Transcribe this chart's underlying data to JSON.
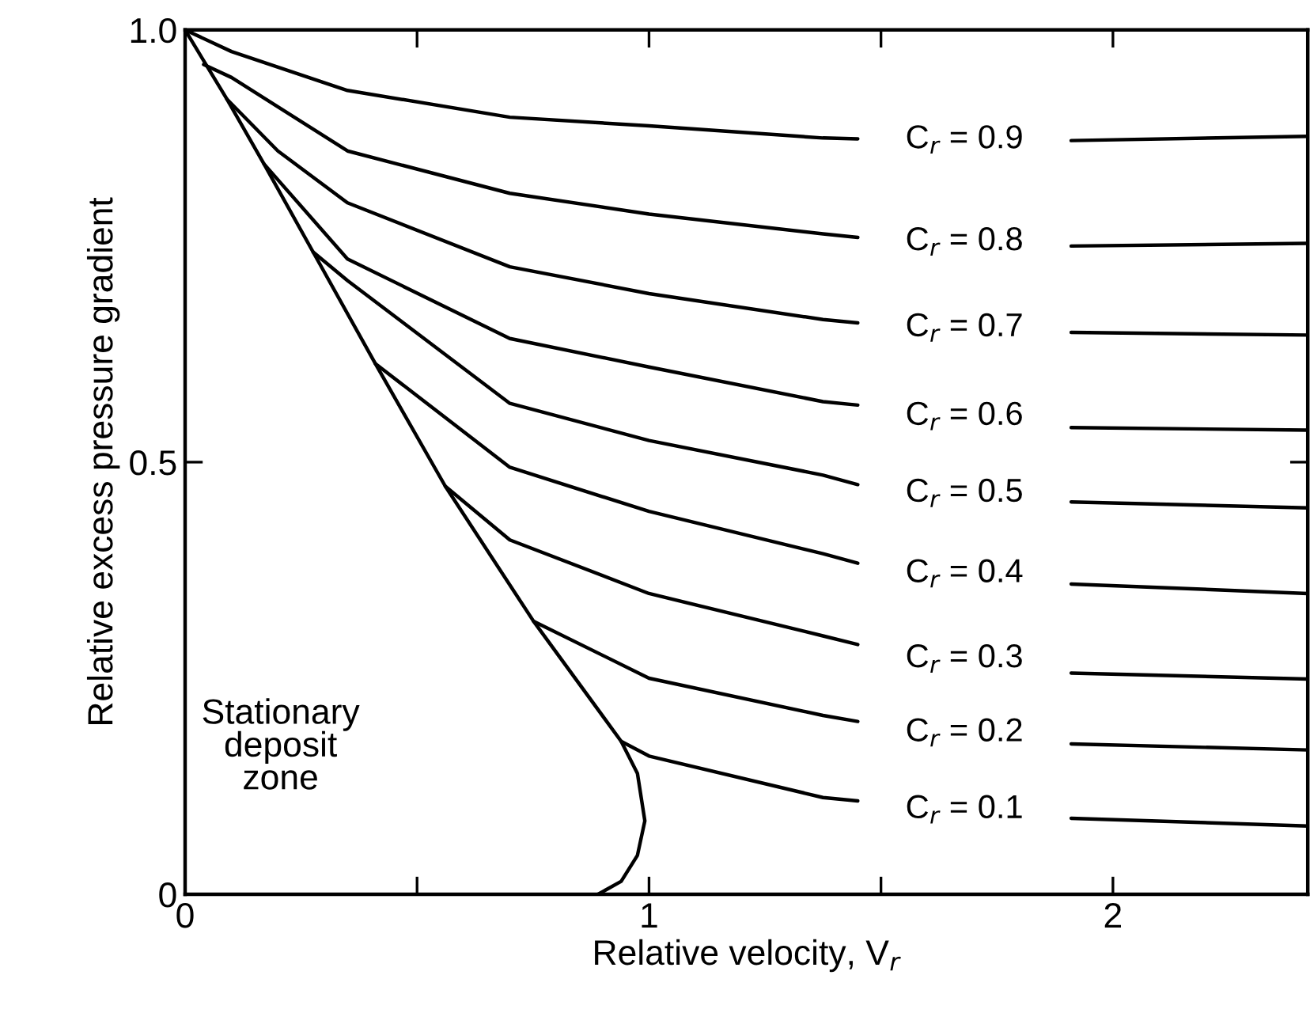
{
  "chart_data": {
    "type": "line",
    "xlabel": "Relative velocity, V$_{r}$",
    "ylabel": "Relative excess pressure gradient",
    "xlim": [
      0,
      2.42
    ],
    "ylim": [
      0,
      1.0
    ],
    "xticks": [
      0,
      {
        "value": 0.5,
        "label": null
      },
      1,
      {
        "value": 1.5,
        "label": null
      },
      2
    ],
    "yticks": [
      0,
      0.5,
      {
        "value": 1.0,
        "label": "1.0"
      }
    ],
    "grid": false,
    "legend": false,
    "series": [
      {
        "name": "C$_{r}$ = 0.9",
        "color": "#000000",
        "x": [
          0,
          0.1,
          0.35,
          0.7,
          1.0,
          1.375,
          1.45,
          1.68,
          1.91,
          2.42
        ],
        "values": [
          1.0,
          0.975,
          0.93,
          0.899,
          0.889,
          0.875,
          0.874,
          null,
          0.872,
          0.877
        ]
      },
      {
        "name": "C$_{r}$ = 0.8",
        "color": "#000000",
        "x": [
          0.04,
          0.1,
          0.35,
          0.7,
          1.0,
          1.375,
          1.45,
          1.68,
          1.91,
          2.42
        ],
        "values": [
          0.96,
          0.945,
          0.86,
          0.811,
          0.787,
          0.764,
          0.76,
          null,
          0.75,
          0.753
        ]
      },
      {
        "name": "C$_{r}$ = 0.7",
        "color": "#000000",
        "x": [
          0.09,
          0.2,
          0.35,
          0.7,
          1.0,
          1.375,
          1.45,
          1.68,
          1.91,
          2.42
        ],
        "values": [
          0.92,
          0.86,
          0.8,
          0.726,
          0.695,
          0.665,
          0.661,
          null,
          0.65,
          0.647
        ]
      },
      {
        "name": "C$_{r}$ = 0.6",
        "color": "#000000",
        "x": [
          0.17,
          0.35,
          0.7,
          1.0,
          1.375,
          1.45,
          1.68,
          1.91,
          2.42
        ],
        "values": [
          0.845,
          0.735,
          0.643,
          0.61,
          0.57,
          0.566,
          null,
          0.54,
          0.537
        ]
      },
      {
        "name": "C$_{r}$ = 0.5",
        "color": "#000000",
        "x": [
          0.276,
          0.35,
          0.7,
          1.0,
          1.375,
          1.45,
          1.68,
          1.91,
          2.42
        ],
        "values": [
          0.743,
          0.71,
          0.568,
          0.525,
          0.485,
          0.474,
          null,
          0.454,
          0.447
        ]
      },
      {
        "name": "C$_{r}$ = 0.4",
        "color": "#000000",
        "x": [
          0.41,
          0.7,
          1.0,
          1.375,
          1.45,
          1.68,
          1.91,
          2.42
        ],
        "values": [
          0.614,
          0.494,
          0.443,
          0.394,
          0.383,
          null,
          0.359,
          0.348
        ]
      },
      {
        "name": "C$_{r}$ = 0.3",
        "color": "#000000",
        "x": [
          0.561,
          0.7,
          1.0,
          1.375,
          1.45,
          1.68,
          1.91,
          2.42
        ],
        "values": [
          0.472,
          0.41,
          0.348,
          0.299,
          0.289,
          null,
          0.256,
          0.249
        ]
      },
      {
        "name": "C$_{r}$ = 0.2",
        "color": "#000000",
        "x": [
          0.751,
          1.0,
          1.375,
          1.45,
          1.68,
          1.91,
          2.42
        ],
        "values": [
          0.316,
          0.25,
          0.207,
          0.2,
          null,
          0.174,
          0.167
        ]
      },
      {
        "name": "C$_{r}$ = 0.1",
        "color": "#000000",
        "x": [
          0.94,
          1.0,
          1.375,
          1.45,
          1.68,
          1.91,
          2.42
        ],
        "values": [
          0.177,
          0.16,
          0.112,
          0.108,
          null,
          0.088,
          0.079
        ]
      },
      {
        "color": "#000000",
        "x": [
          0,
          0.09,
          0.17,
          0.276,
          0.41,
          0.561,
          0.751,
          0.94,
          0.975,
          0.991,
          0.975,
          0.94,
          0.89
        ],
        "values": [
          1.0,
          0.92,
          0.845,
          0.743,
          0.614,
          0.472,
          0.316,
          0.177,
          0.14,
          0.085,
          0.045,
          0.015,
          0.0
        ]
      }
    ],
    "annotations": [
      "Stationary\ndeposit\nzone"
    ]
  }
}
